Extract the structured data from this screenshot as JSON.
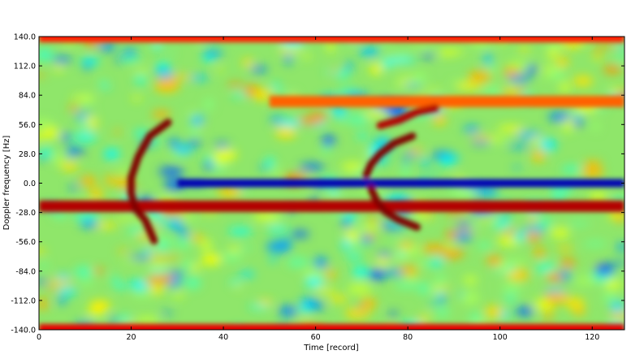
{
  "chart_data": {
    "type": "heatmap",
    "title": "",
    "xlabel": "Time [record]",
    "ylabel": "Doppler frequency [Hz]",
    "xlim": [
      0,
      127
    ],
    "ylim": [
      -140.0,
      140.0
    ],
    "x_ticks": [
      0,
      20,
      40,
      60,
      80,
      100,
      120
    ],
    "y_ticks": [
      140.0,
      112.0,
      84.0,
      56.0,
      28.0,
      0.0,
      -28.0,
      -56.0,
      -84.0,
      -112.0,
      -140.0
    ],
    "x_tick_labels": [
      "0",
      "20",
      "40",
      "60",
      "80",
      "100",
      "120"
    ],
    "y_tick_labels": [
      "140.0",
      "112.0",
      "84.0",
      "56.0",
      "28.0",
      "0.0",
      "-28.0",
      "-56.0",
      "-84.0",
      "-112.0",
      "-140.0"
    ],
    "colormap": "jet",
    "grid": false,
    "features": [
      {
        "kind": "band",
        "y": -22,
        "x_range": [
          0,
          127
        ],
        "level": 0.95
      },
      {
        "kind": "band",
        "y": 0,
        "x_range": [
          30,
          127
        ],
        "level": 0.05
      },
      {
        "kind": "band",
        "y": -140,
        "x_range": [
          0,
          127
        ],
        "level": 0.9
      },
      {
        "kind": "band",
        "y": 140,
        "x_range": [
          0,
          127
        ],
        "level": 0.85
      },
      {
        "kind": "band",
        "y": 78,
        "x_range": [
          50,
          127
        ],
        "level": 0.78
      },
      {
        "kind": "arc",
        "points": [
          [
            28,
            58
          ],
          [
            24,
            45
          ],
          [
            21.5,
            25
          ],
          [
            20,
            5
          ],
          [
            20,
            -10
          ],
          [
            21,
            -25
          ],
          [
            23,
            -35
          ],
          [
            25,
            -55
          ]
        ],
        "level": 1.0
      },
      {
        "kind": "arc",
        "points": [
          [
            71,
            8
          ],
          [
            72,
            18
          ],
          [
            74,
            28
          ],
          [
            77,
            38
          ],
          [
            81,
            45
          ]
        ],
        "level": 1.0
      },
      {
        "kind": "arc",
        "points": [
          [
            72,
            -5
          ],
          [
            73,
            -15
          ],
          [
            75,
            -27
          ],
          [
            78,
            -35
          ],
          [
            82,
            -42
          ]
        ],
        "level": 1.0
      },
      {
        "kind": "arc",
        "points": [
          [
            74,
            55
          ],
          [
            78,
            60
          ],
          [
            82,
            68
          ],
          [
            86,
            72
          ]
        ],
        "level": 0.95
      }
    ]
  }
}
